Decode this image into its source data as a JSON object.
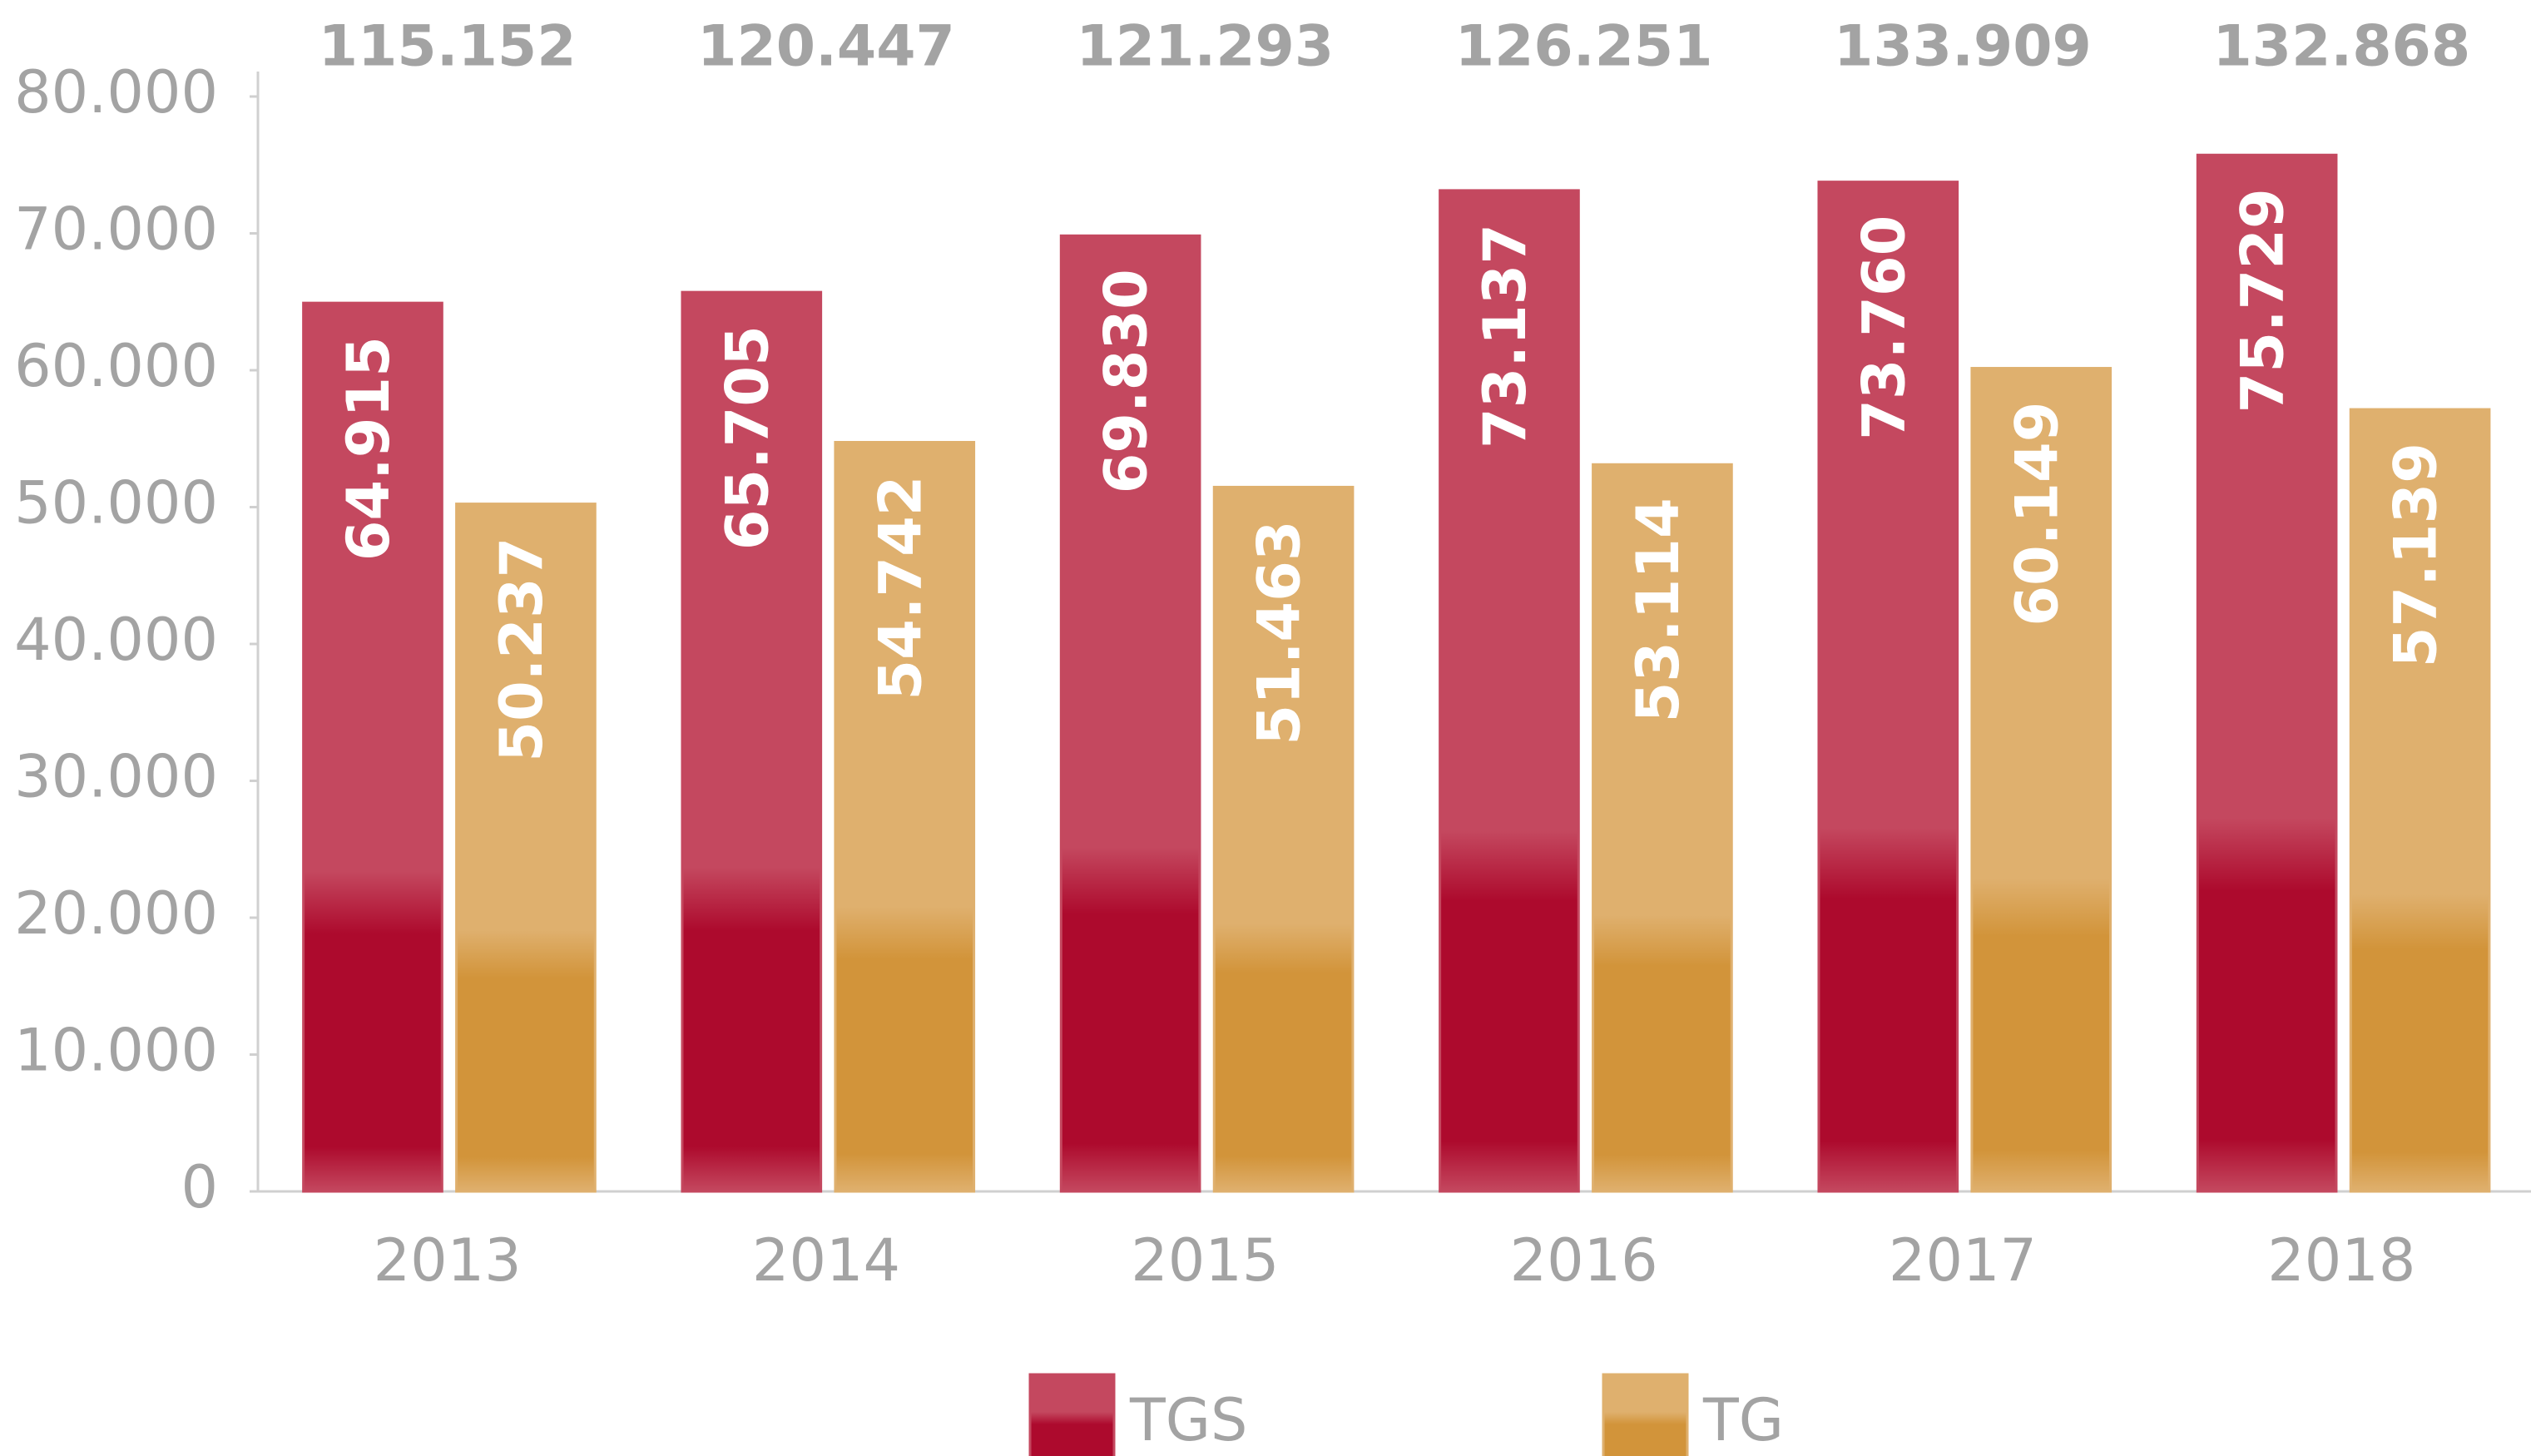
{
  "chart_data": {
    "type": "bar",
    "categories": [
      "2013",
      "2014",
      "2015",
      "2016",
      "2017",
      "2018"
    ],
    "series": [
      {
        "name": "TGS",
        "color": "#c4485f",
        "values": [
          64915,
          65705,
          69830,
          73137,
          73760,
          75729
        ],
        "value_labels": [
          "64.915",
          "65.705",
          "69.830",
          "73.137",
          "73.760",
          "75.729"
        ]
      },
      {
        "name": "TG",
        "color": "#dfb06e",
        "values": [
          50237,
          54742,
          51463,
          53114,
          60149,
          57139
        ],
        "value_labels": [
          "50.237",
          "54.742",
          "51.463",
          "53.114",
          "60.149",
          "57.139"
        ]
      }
    ],
    "totals": {
      "values": [
        115152,
        120447,
        121293,
        126251,
        133909,
        132868
      ],
      "value_labels": [
        "115.152",
        "120.447",
        "121.293",
        "126.251",
        "133.909",
        "132.868"
      ]
    },
    "ylim": [
      0,
      80000
    ],
    "yticks": [
      0,
      {
        "value": 10000,
        "label": "10.000"
      },
      {
        "value": 20000,
        "label": "20.000"
      },
      {
        "value": 30000,
        "label": "30.000"
      },
      {
        "value": 40000,
        "label": "40.000"
      },
      {
        "value": 50000,
        "label": "50.000"
      },
      {
        "value": 60000,
        "label": "60.000"
      },
      {
        "value": 70000,
        "label": "70.000"
      },
      {
        "value": 80000,
        "label": "80.000"
      }
    ],
    "legend": "bottom"
  }
}
